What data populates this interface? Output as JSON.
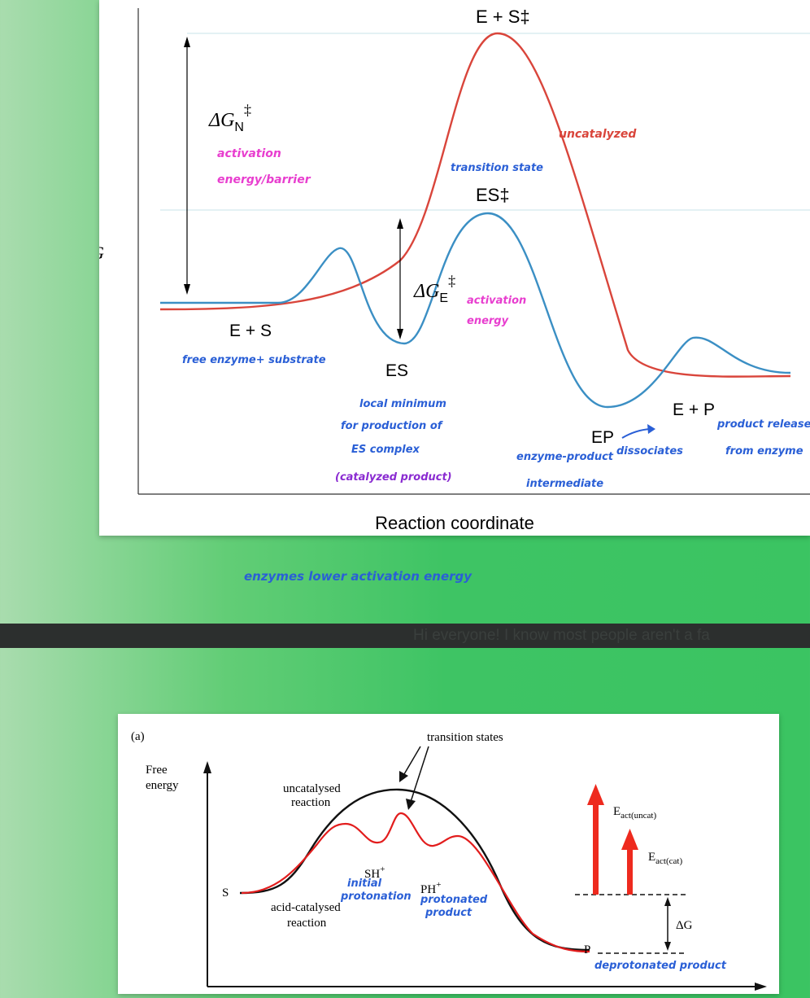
{
  "diagram1": {
    "y_axis_label": "G",
    "x_axis_label": "Reaction coordinate",
    "transition_uncat_label": "E + S‡",
    "transition_cat_label": "ES‡",
    "dGN_main": "ΔG",
    "dGN_sub": "N",
    "dGN_dagger": "‡",
    "dGE_main": "ΔG",
    "dGE_sub": "E",
    "dGE_dagger": "‡",
    "es_start_label": "E + S",
    "es_label": "ES",
    "ep_label": "EP",
    "ep_end_label": "E + P",
    "colors": {
      "uncatalyzed": "#d9453b",
      "catalyzed": "#3b8fc4",
      "pink": "#e83ecf",
      "blue": "#2a5fd6",
      "purple": "#8a2bd1"
    },
    "notes": {
      "uncatalyzed": "uncatalyzed",
      "transition_state": "transition state",
      "activation_energy_1": "activation",
      "activation_energy_2": "energy/barrier",
      "activation_e_1": "activation",
      "activation_e_2": "energy",
      "free_enzyme": "free enzyme+ substrate",
      "local_min_1": "local minimum",
      "local_min_2": "for production of",
      "local_min_3": "ES complex",
      "catalyzed_product": "(catalyzed product)",
      "enzyme_product_1": "enzyme-product",
      "enzyme_product_2": "intermediate",
      "dissociates": "dissociates",
      "product_release_1": "product release",
      "product_release_2": "from enzyme"
    },
    "caption": "enzymes lower activation energy"
  },
  "divider_text": "Hi everyone! I know most people aren't a fa",
  "diagram2": {
    "panel_label": "(a)",
    "y_axis_label_1": "Free",
    "y_axis_label_2": "energy",
    "transition_states": "transition states",
    "uncat_label_1": "uncatalysed",
    "uncat_label_2": "reaction",
    "cat_label_1": "acid-catalysed",
    "cat_label_2": "reaction",
    "s_label": "S",
    "p_label": "P",
    "sh_label": "SH",
    "ph_label": "PH",
    "plus": "+",
    "eact_uncat_main": "E",
    "eact_uncat_sub": "act(uncat)",
    "eact_cat_main": "E",
    "eact_cat_sub": "act(cat)",
    "dg_label": "ΔG",
    "notes": {
      "initial_1": "initial",
      "initial_2": "protonation",
      "protonated_1": "protonated",
      "protonated_2": "product",
      "deprotonated": "deprotonated product"
    },
    "colors": {
      "uncatalysed": "#111111",
      "catalysed": "#e21d1d",
      "arrow": "#ee2a1e",
      "blue": "#2a5fd6"
    }
  }
}
